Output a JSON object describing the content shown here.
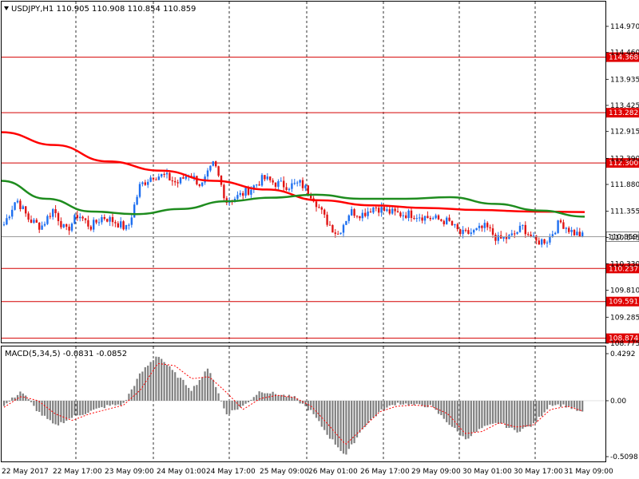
{
  "symbol_header": "USDJPY,H1  110.905 110.908 110.854 110.859",
  "macd_header": "MACD(5,34,5) -0.0831 -0.0852",
  "colors": {
    "background": "#ffffff",
    "bull_candle": "#1e6ff0",
    "bear_candle": "#e01414",
    "ma_fast": "#1e8c1e",
    "ma_slow": "#ff0000",
    "level_line": "#d40000",
    "label_bg": "#e00000",
    "histogram": "#808080",
    "signal": "#ff0000",
    "grid": "#000000"
  },
  "chart_data": [
    {
      "type": "candlestick",
      "title": "USDJPY,H1",
      "ohlc_current": {
        "open": 110.905,
        "high": 110.908,
        "low": 110.854,
        "close": 110.859
      },
      "ylim": [
        108.775,
        115.2
      ],
      "y_ticks": [
        "114.970",
        "114.460",
        "113.935",
        "113.425",
        "112.915",
        "112.390",
        "111.880",
        "111.355",
        "110.845",
        "110.330",
        "109.810",
        "109.285",
        "108.775"
      ],
      "x_labels": [
        "22 May 2017",
        "22 May 17:00",
        "23 May 09:00",
        "24 May 01:00",
        "24 May 17:00",
        "25 May 09:00",
        "26 May 01:00",
        "26 May 17:00",
        "29 May 09:00",
        "30 May 01:00",
        "30 May 17:00",
        "31 May 09:00"
      ],
      "grid": "vertical dashed",
      "current_price": "110.859",
      "levels": [
        "114.368",
        "113.282",
        "112.300",
        "110.237",
        "109.591",
        "108.874"
      ],
      "price_path": [
        111.1,
        111.6,
        111.2,
        111.05,
        111.4,
        110.95,
        111.3,
        111.05,
        111.25,
        111.15,
        111.0,
        111.85,
        112.05,
        112.05,
        111.9,
        112.1,
        111.85,
        112.3,
        111.55,
        111.65,
        111.8,
        112.0,
        111.9,
        111.85,
        111.9,
        111.65,
        111.2,
        110.9,
        111.35,
        111.3,
        111.45,
        111.35,
        111.3,
        111.3,
        111.25,
        111.2,
        111.15,
        110.9,
        110.95,
        111.05,
        110.8,
        110.85,
        111.05,
        110.75,
        110.8,
        111.15,
        110.95,
        110.85
      ],
      "series": [
        {
          "name": "MA fast",
          "values": [
            111.95,
            111.6,
            111.35,
            111.3,
            111.4,
            111.55,
            111.62,
            111.68,
            111.6,
            111.6,
            111.63,
            111.5,
            111.37,
            111.25
          ]
        },
        {
          "name": "MA slow",
          "values": [
            112.9,
            112.65,
            112.33,
            112.15,
            111.95,
            111.78,
            111.57,
            111.47,
            111.42,
            111.38,
            111.35,
            111.34
          ]
        }
      ]
    },
    {
      "type": "bar",
      "title": "MACD(5,34,5)",
      "macd": -0.0831,
      "signal_value": -0.0852,
      "ylim": [
        -0.5098,
        0.4292
      ],
      "y_ticks": [
        "0.4292",
        "0.00",
        "-0.5098"
      ],
      "histogram_path": [
        -0.05,
        0.09,
        -0.1,
        -0.23,
        -0.15,
        -0.1,
        -0.05,
        -0.03,
        0.25,
        0.42,
        0.25,
        0.1,
        0.3,
        -0.12,
        -0.05,
        0.09,
        0.06,
        0.03,
        -0.1,
        -0.32,
        -0.5,
        -0.25,
        -0.1,
        -0.02,
        -0.04,
        -0.05,
        -0.2,
        -0.35,
        -0.25,
        -0.2,
        -0.28,
        -0.22,
        -0.03,
        -0.05,
        -0.12
      ],
      "signal_path": [
        -0.06,
        0.04,
        0.0,
        -0.12,
        -0.18,
        -0.12,
        -0.08,
        -0.04,
        0.1,
        0.34,
        0.32,
        0.2,
        0.22,
        0.08,
        -0.08,
        0.02,
        0.05,
        0.03,
        -0.05,
        -0.22,
        -0.4,
        -0.25,
        -0.1,
        -0.05,
        -0.04,
        -0.05,
        -0.12,
        -0.3,
        -0.28,
        -0.2,
        -0.24,
        -0.22,
        -0.08,
        -0.05,
        -0.1
      ]
    }
  ]
}
